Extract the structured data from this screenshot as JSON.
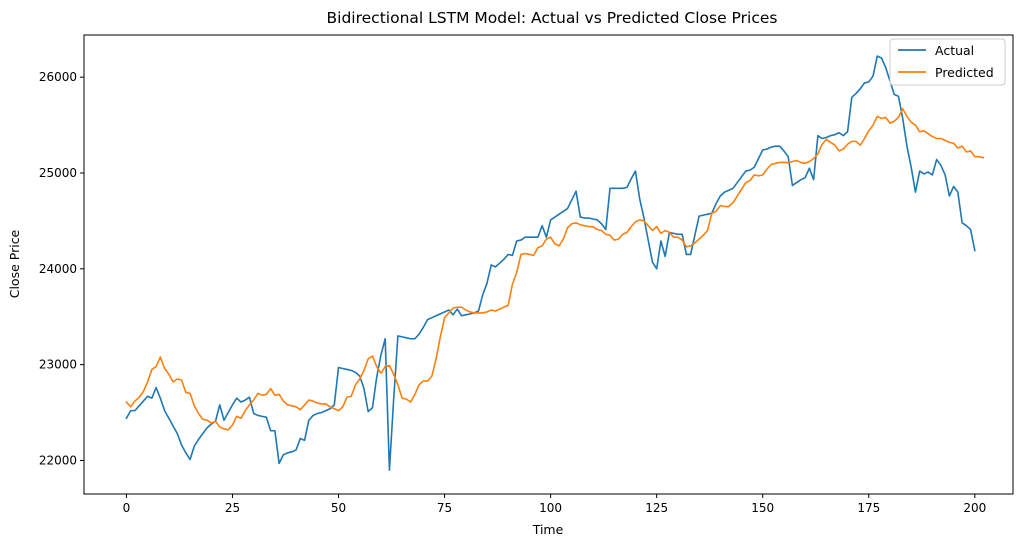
{
  "chart_data": {
    "type": "line",
    "title": "Bidirectional LSTM Model: Actual vs Predicted Close Prices",
    "xlabel": "Time",
    "ylabel": "Close Price",
    "xlim": [
      -10,
      209
    ],
    "ylim": [
      21650,
      26440
    ],
    "xticks": [
      0,
      25,
      50,
      75,
      100,
      125,
      150,
      175,
      200
    ],
    "yticks": [
      22000,
      23000,
      24000,
      25000,
      26000
    ],
    "grid": false,
    "legend_position": "top-right",
    "series": [
      {
        "name": "Actual",
        "color": "#1f77b4",
        "values": [
          22440,
          22520,
          22520,
          22570,
          22620,
          22670,
          22650,
          22760,
          22650,
          22520,
          22440,
          22360,
          22280,
          22160,
          22080,
          22010,
          22150,
          22220,
          22280,
          22340,
          22380,
          22410,
          22580,
          22420,
          22500,
          22580,
          22650,
          22610,
          22630,
          22660,
          22490,
          22470,
          22460,
          22450,
          22310,
          22310,
          21970,
          22060,
          22080,
          22090,
          22110,
          22230,
          22210,
          22420,
          22470,
          22490,
          22500,
          22520,
          22540,
          22580,
          22970,
          22960,
          22950,
          22940,
          22920,
          22880,
          22750,
          22510,
          22550,
          22870,
          23100,
          23270,
          21900,
          22640,
          23300,
          23290,
          23280,
          23270,
          23270,
          23320,
          23390,
          23470,
          23490,
          23510,
          23530,
          23550,
          23570,
          23520,
          23580,
          23510,
          23520,
          23530,
          23540,
          23560,
          23730,
          23850,
          24040,
          24020,
          24060,
          24100,
          24150,
          24140,
          24290,
          24300,
          24330,
          24330,
          24330,
          24330,
          24450,
          24330,
          24510,
          24540,
          24570,
          24600,
          24630,
          24720,
          24810,
          24540,
          24530,
          24530,
          24520,
          24510,
          24470,
          24410,
          24840,
          24840,
          24840,
          24840,
          24850,
          24940,
          25020,
          24730,
          24530,
          24300,
          24070,
          24000,
          24290,
          24130,
          24380,
          24370,
          24360,
          24360,
          24150,
          24150,
          24350,
          24550,
          24560,
          24570,
          24580,
          24680,
          24760,
          24800,
          24820,
          24840,
          24900,
          24960,
          25020,
          25030,
          25060,
          25150,
          25240,
          25250,
          25270,
          25280,
          25280,
          25230,
          25170,
          24870,
          24900,
          24930,
          24950,
          25050,
          24930,
          25390,
          25360,
          25370,
          25390,
          25400,
          25420,
          25390,
          25430,
          25790,
          25830,
          25880,
          25940,
          25950,
          26010,
          26220,
          26200,
          26100,
          25960,
          25820,
          25800,
          25570,
          25280,
          25060,
          24800,
          25020,
          24990,
          25010,
          24980,
          25140,
          25080,
          24980,
          24760,
          24860,
          24800,
          24480,
          24450,
          24410,
          24190
        ]
      },
      {
        "name": "Predicted",
        "color": "#ff7f0e",
        "values": [
          22610,
          22560,
          22620,
          22660,
          22720,
          22820,
          22950,
          22980,
          23080,
          22960,
          22900,
          22820,
          22850,
          22840,
          22710,
          22700,
          22570,
          22490,
          22430,
          22420,
          22390,
          22410,
          22350,
          22330,
          22320,
          22370,
          22460,
          22440,
          22520,
          22580,
          22630,
          22700,
          22680,
          22690,
          22750,
          22680,
          22690,
          22620,
          22580,
          22570,
          22560,
          22530,
          22580,
          22630,
          22620,
          22600,
          22590,
          22590,
          22560,
          22540,
          22520,
          22560,
          22660,
          22670,
          22790,
          22850,
          22940,
          23060,
          23090,
          22980,
          22910,
          22980,
          22990,
          22900,
          22790,
          22650,
          22640,
          22610,
          22690,
          22790,
          22830,
          22830,
          22880,
          23060,
          23290,
          23490,
          23540,
          23590,
          23600,
          23600,
          23570,
          23550,
          23540,
          23540,
          23540,
          23550,
          23570,
          23560,
          23580,
          23600,
          23620,
          23840,
          23960,
          24150,
          24160,
          24150,
          24140,
          24220,
          24240,
          24310,
          24330,
          24260,
          24240,
          24310,
          24430,
          24470,
          24480,
          24460,
          24450,
          24440,
          24440,
          24410,
          24400,
          24360,
          24350,
          24300,
          24310,
          24360,
          24380,
          24440,
          24490,
          24510,
          24500,
          24450,
          24400,
          24440,
          24370,
          24400,
          24380,
          24330,
          24330,
          24300,
          24230,
          24240,
          24270,
          24310,
          24350,
          24400,
          24580,
          24600,
          24660,
          24650,
          24650,
          24690,
          24760,
          24830,
          24900,
          24920,
          24980,
          24970,
          24980,
          25040,
          25090,
          25100,
          25110,
          25110,
          25110,
          25120,
          25130,
          25110,
          25100,
          25120,
          25150,
          25200,
          25300,
          25350,
          25320,
          25290,
          25230,
          25250,
          25300,
          25330,
          25330,
          25290,
          25360,
          25440,
          25500,
          25590,
          25570,
          25580,
          25520,
          25540,
          25580,
          25670,
          25590,
          25530,
          25500,
          25430,
          25440,
          25410,
          25380,
          25360,
          25360,
          25340,
          25320,
          25310,
          25260,
          25280,
          25220,
          25230,
          25170,
          25170,
          25160
        ]
      }
    ]
  }
}
